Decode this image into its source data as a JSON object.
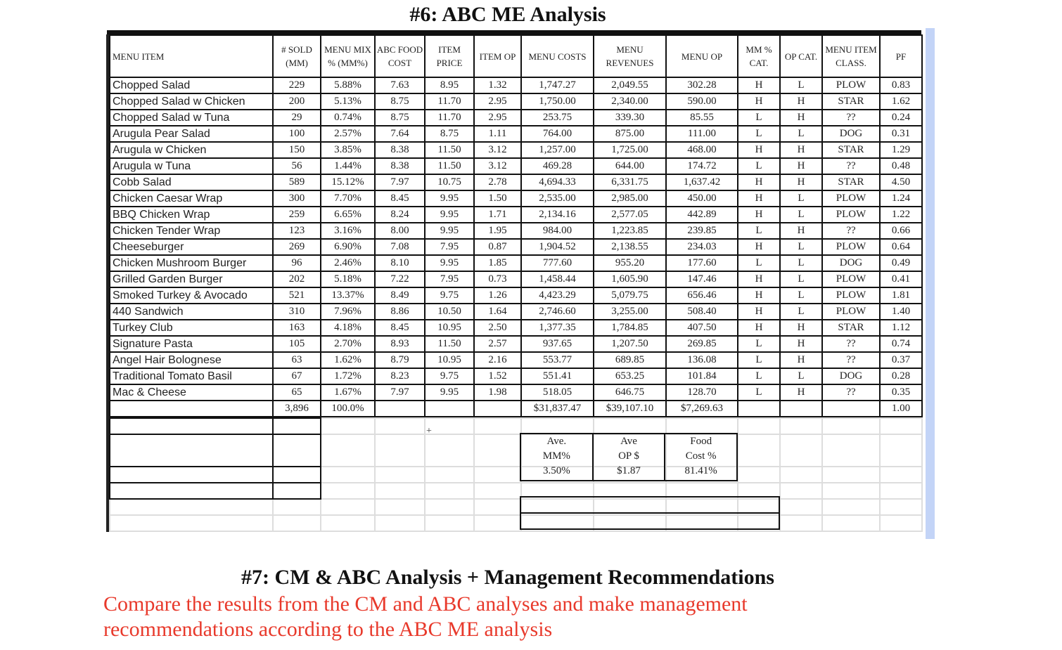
{
  "title": "#6: ABC ME Analysis",
  "headers": [
    "MENU ITEM",
    "# SOLD (MM)",
    "MENU MIX % (MM%)",
    "ABC FOOD COST",
    "ITEM PRICE",
    "ITEM OP",
    "MENU COSTS",
    "MENU REVENUES",
    "MENU OP",
    "MM % CAT.",
    "OP CAT.",
    "MENU ITEM CLASS.",
    "PF"
  ],
  "rows": [
    [
      "Chopped Salad",
      "229",
      "5.88%",
      "7.63",
      "8.95",
      "1.32",
      "1,747.27",
      "2,049.55",
      "302.28",
      "H",
      "L",
      "PLOW",
      "0.83"
    ],
    [
      "Chopped Salad w Chicken",
      "200",
      "5.13%",
      "8.75",
      "11.70",
      "2.95",
      "1,750.00",
      "2,340.00",
      "590.00",
      "H",
      "H",
      "STAR",
      "1.62"
    ],
    [
      "Chopped Salad w Tuna",
      "29",
      "0.74%",
      "8.75",
      "11.70",
      "2.95",
      "253.75",
      "339.30",
      "85.55",
      "L",
      "H",
      "??",
      "0.24"
    ],
    [
      "Arugula Pear Salad",
      "100",
      "2.57%",
      "7.64",
      "8.75",
      "1.11",
      "764.00",
      "875.00",
      "111.00",
      "L",
      "L",
      "DOG",
      "0.31"
    ],
    [
      "Arugula w Chicken",
      "150",
      "3.85%",
      "8.38",
      "11.50",
      "3.12",
      "1,257.00",
      "1,725.00",
      "468.00",
      "H",
      "H",
      "STAR",
      "1.29"
    ],
    [
      "Arugula w Tuna",
      "56",
      "1.44%",
      "8.38",
      "11.50",
      "3.12",
      "469.28",
      "644.00",
      "174.72",
      "L",
      "H",
      "??",
      "0.48"
    ],
    [
      "Cobb Salad",
      "589",
      "15.12%",
      "7.97",
      "10.75",
      "2.78",
      "4,694.33",
      "6,331.75",
      "1,637.42",
      "H",
      "H",
      "STAR",
      "4.50"
    ],
    [
      "Chicken Caesar Wrap",
      "300",
      "7.70%",
      "8.45",
      "9.95",
      "1.50",
      "2,535.00",
      "2,985.00",
      "450.00",
      "H",
      "L",
      "PLOW",
      "1.24"
    ],
    [
      "BBQ Chicken Wrap",
      "259",
      "6.65%",
      "8.24",
      "9.95",
      "1.71",
      "2,134.16",
      "2,577.05",
      "442.89",
      "H",
      "L",
      "PLOW",
      "1.22"
    ],
    [
      "Chicken Tender Wrap",
      "123",
      "3.16%",
      "8.00",
      "9.95",
      "1.95",
      "984.00",
      "1,223.85",
      "239.85",
      "L",
      "H",
      "??",
      "0.66"
    ],
    [
      "Cheeseburger",
      "269",
      "6.90%",
      "7.08",
      "7.95",
      "0.87",
      "1,904.52",
      "2,138.55",
      "234.03",
      "H",
      "L",
      "PLOW",
      "0.64"
    ],
    [
      "Chicken Mushroom Burger",
      "96",
      "2.46%",
      "8.10",
      "9.95",
      "1.85",
      "777.60",
      "955.20",
      "177.60",
      "L",
      "L",
      "DOG",
      "0.49"
    ],
    [
      "Grilled Garden Burger",
      "202",
      "5.18%",
      "7.22",
      "7.95",
      "0.73",
      "1,458.44",
      "1,605.90",
      "147.46",
      "H",
      "L",
      "PLOW",
      "0.41"
    ],
    [
      "Smoked Turkey & Avocado",
      "521",
      "13.37%",
      "8.49",
      "9.75",
      "1.26",
      "4,423.29",
      "5,079.75",
      "656.46",
      "H",
      "L",
      "PLOW",
      "1.81"
    ],
    [
      "440 Sandwich",
      "310",
      "7.96%",
      "8.86",
      "10.50",
      "1.64",
      "2,746.60",
      "3,255.00",
      "508.40",
      "H",
      "L",
      "PLOW",
      "1.40"
    ],
    [
      "Turkey Club",
      "163",
      "4.18%",
      "8.45",
      "10.95",
      "2.50",
      "1,377.35",
      "1,784.85",
      "407.50",
      "H",
      "H",
      "STAR",
      "1.12"
    ],
    [
      "Signature Pasta",
      "105",
      "2.70%",
      "8.93",
      "11.50",
      "2.57",
      "937.65",
      "1,207.50",
      "269.85",
      "L",
      "H",
      "??",
      "0.74"
    ],
    [
      "Angel Hair Bolognese",
      "63",
      "1.62%",
      "8.79",
      "10.95",
      "2.16",
      "553.77",
      "689.85",
      "136.08",
      "L",
      "H",
      "??",
      "0.37"
    ],
    [
      "Traditional Tomato Basil",
      "67",
      "1.72%",
      "8.23",
      "9.75",
      "1.52",
      "551.41",
      "653.25",
      "101.84",
      "L",
      "L",
      "DOG",
      "0.28"
    ],
    [
      "Mac & Cheese",
      "65",
      "1.67%",
      "7.97",
      "9.95",
      "1.98",
      "518.05",
      "646.75",
      "128.70",
      "L",
      "H",
      "??",
      "0.35"
    ]
  ],
  "totals": [
    "",
    "3,896",
    "100.0%",
    "",
    "",
    "",
    "$31,837.47",
    "$39,107.10",
    "$7,269.63",
    "",
    "",
    "",
    "1.00"
  ],
  "averages": {
    "mm": {
      "label1": "Ave.",
      "label2": "MM%",
      "value": "3.50%"
    },
    "op": {
      "label1": "Ave",
      "label2": "OP $",
      "value": "$1.87"
    },
    "fc": {
      "label1": "Food",
      "label2": "Cost %",
      "value": "81.41%"
    }
  },
  "plus_mark": "+",
  "section7_title": "#7: CM & ABC Analysis + Management Recommendations",
  "section7_instruction": "Compare the results from the CM and ABC analyses and make management recommendations according to the ABC ME analysis",
  "colors": {
    "instruction": "#e8392b",
    "scrollbar": "#c3d4f7"
  }
}
